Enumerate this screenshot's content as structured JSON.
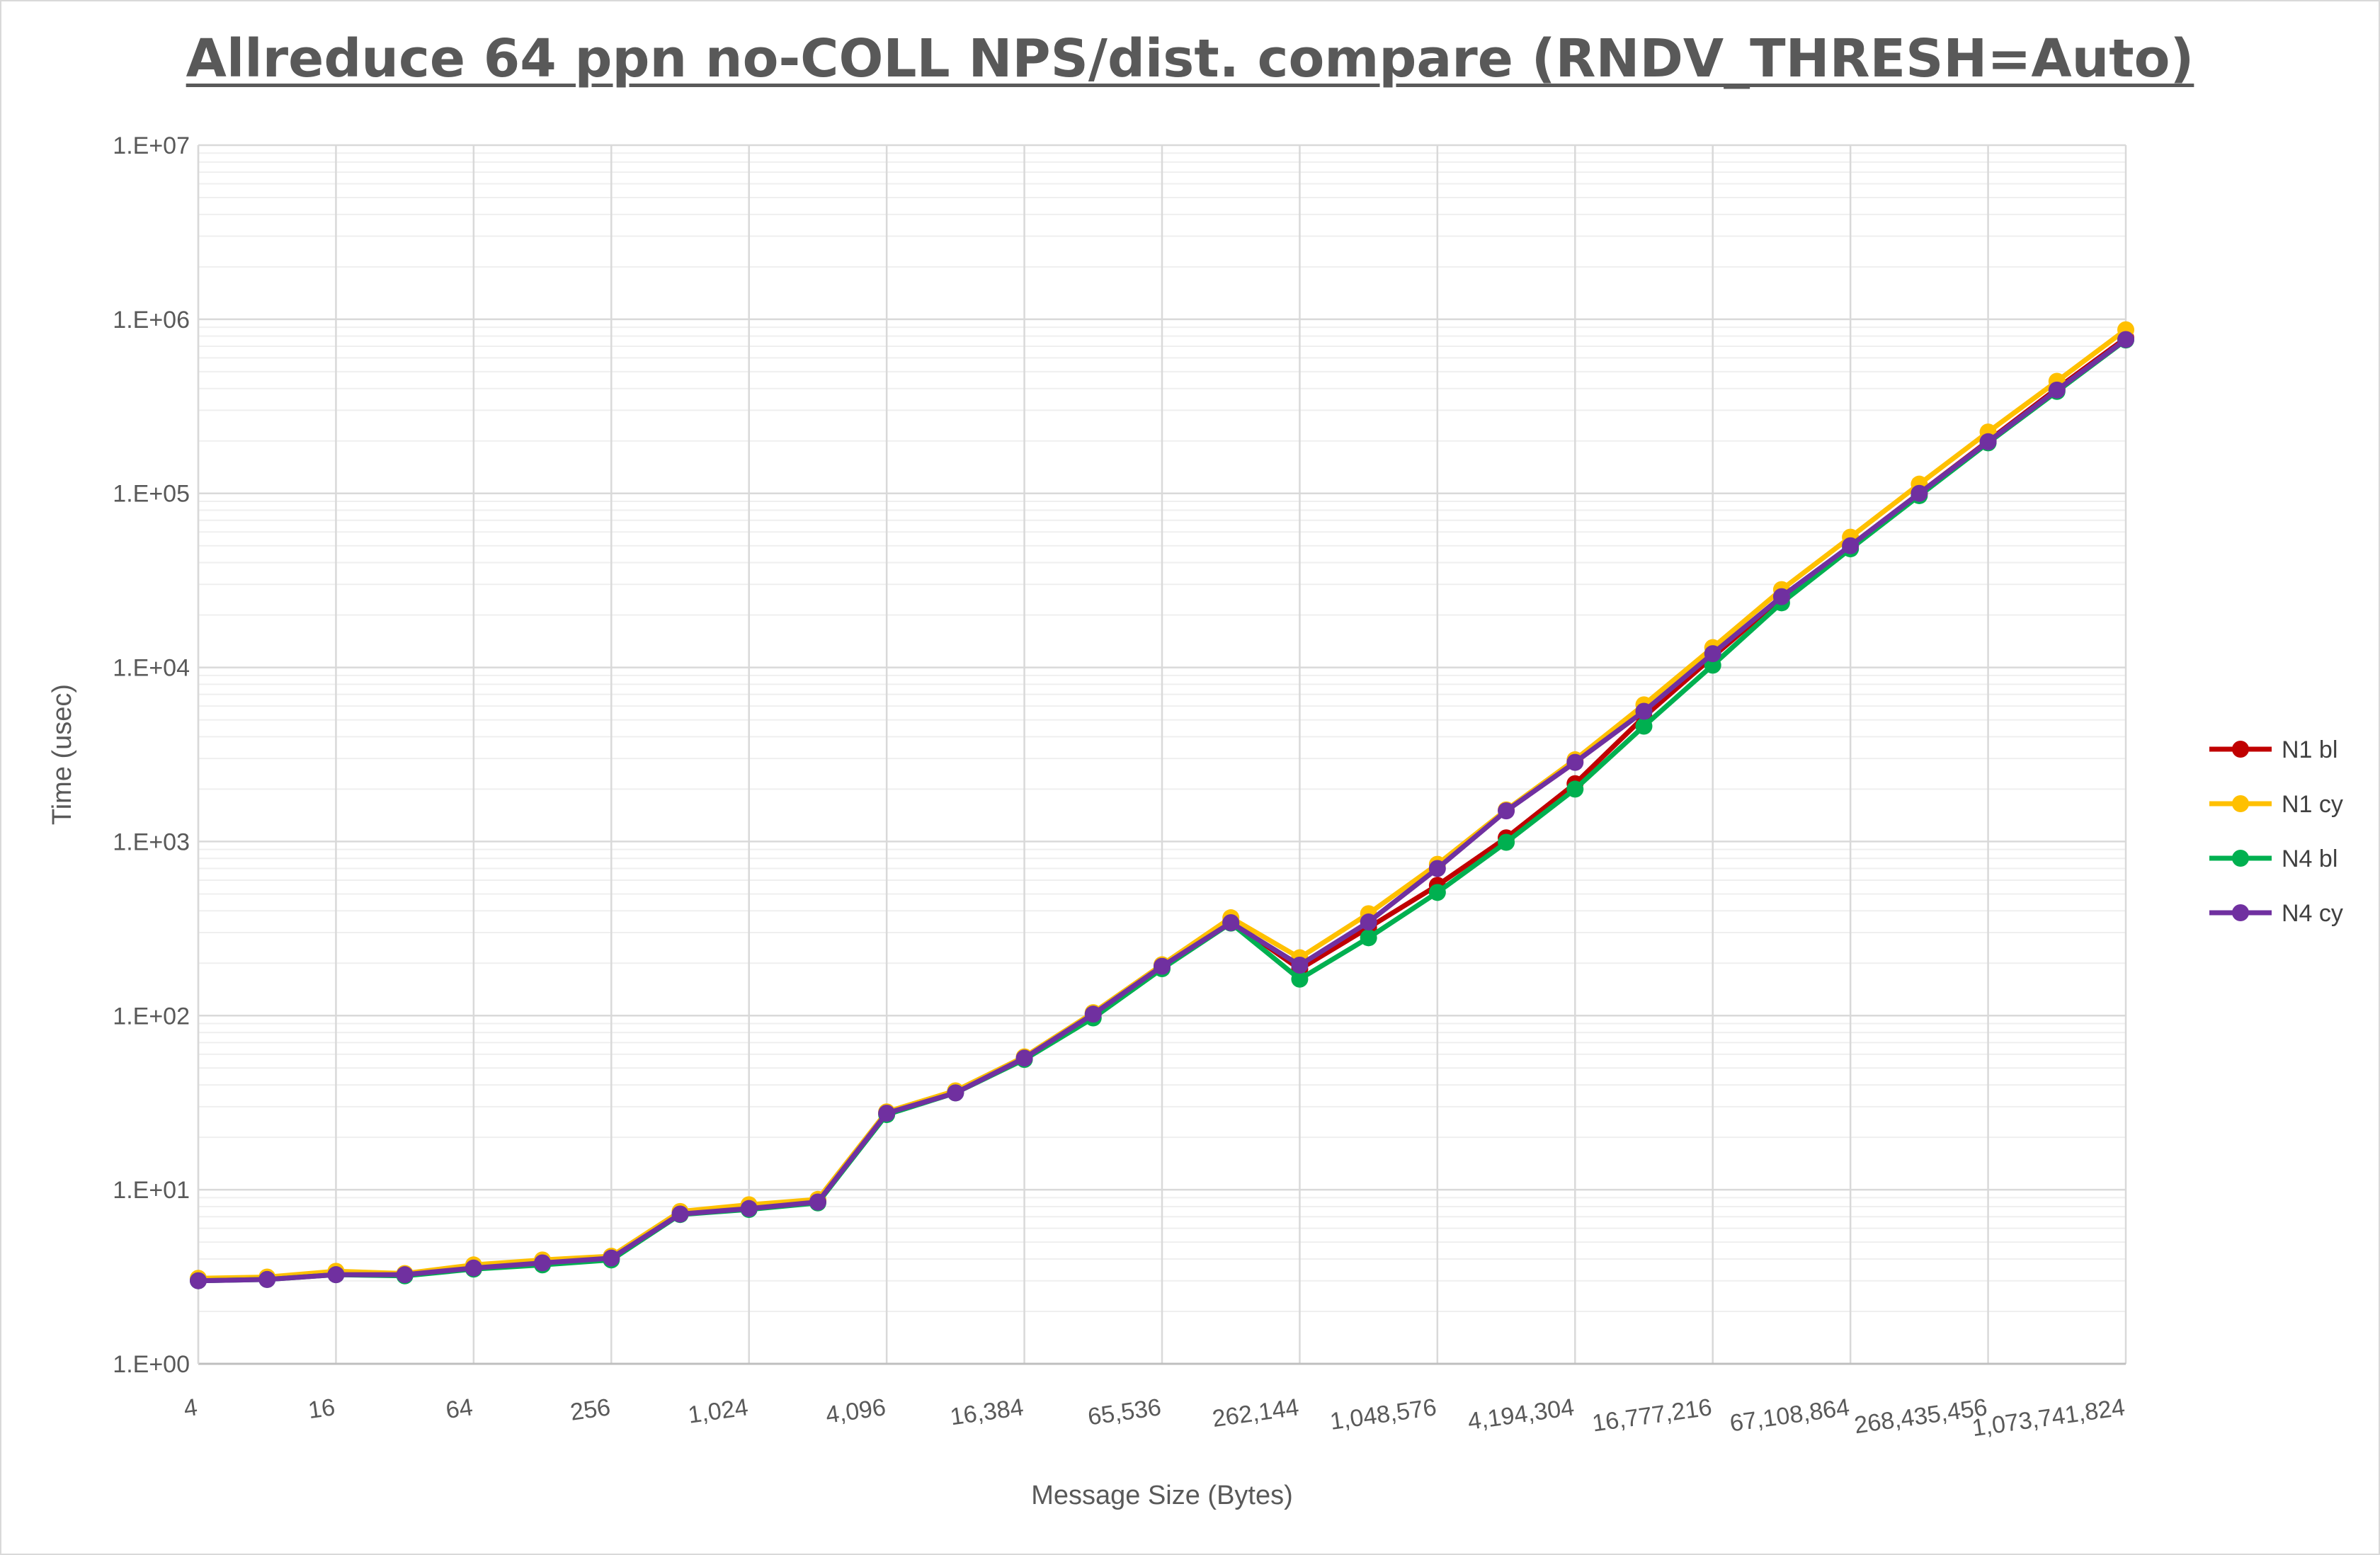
{
  "chart_data": {
    "type": "line",
    "title": "Allreduce 64 ppn no-COLL NPS/dist. compare (RNDV_THRESH=Auto)",
    "xlabel": "Message Size (Bytes)",
    "ylabel": "Time (usec)",
    "yscale": "log",
    "ylim": [
      1,
      10000000
    ],
    "y_ticks": [
      1,
      10,
      100,
      1000,
      10000,
      100000,
      1000000,
      10000000
    ],
    "y_tick_labels": [
      "1.E+00",
      "1.E+01",
      "1.E+02",
      "1.E+03",
      "1.E+04",
      "1.E+05",
      "1.E+06",
      "1.E+07"
    ],
    "x": [
      4,
      8,
      16,
      32,
      64,
      128,
      256,
      512,
      1024,
      2048,
      4096,
      8192,
      16384,
      32768,
      65536,
      131072,
      262144,
      524288,
      1048576,
      2097152,
      4194304,
      8388608,
      16777216,
      33554432,
      67108864,
      134217728,
      268435456,
      536870912,
      1073741824
    ],
    "x_tick_labels": [
      "4",
      "16",
      "64",
      "256",
      "1,024",
      "4,096",
      "16,384",
      "65,536",
      "262,144",
      "1,048,576",
      "4,194,304",
      "16,777,216",
      "67,108,864",
      "268,435,456",
      "1,073,741,824"
    ],
    "legend_position": "right",
    "grid": true,
    "series": [
      {
        "name": "N1 bl",
        "color": "#c00000",
        "values": [
          3.05,
          3.1,
          3.3,
          3.25,
          3.6,
          3.85,
          4.1,
          7.4,
          8.0,
          8.6,
          27.5,
          36.5,
          57,
          102,
          192,
          350,
          185,
          320,
          560,
          1050,
          2150,
          5200,
          11500,
          25000,
          50000,
          100000,
          200000,
          400000,
          780000
        ]
      },
      {
        "name": "N1 cy",
        "color": "#ffc000",
        "values": [
          3.1,
          3.15,
          3.4,
          3.3,
          3.7,
          3.95,
          4.15,
          7.5,
          8.2,
          8.8,
          28,
          37,
          58,
          104,
          196,
          365,
          215,
          385,
          740,
          1520,
          2950,
          6100,
          13000,
          28000,
          56000,
          113000,
          225000,
          440000,
          870000
        ]
      },
      {
        "name": "N4 bl",
        "color": "#00b050",
        "values": [
          3.0,
          3.05,
          3.25,
          3.2,
          3.5,
          3.7,
          3.95,
          7.2,
          7.7,
          8.4,
          27,
          36,
          56,
          97,
          186,
          340,
          162,
          280,
          510,
          990,
          2000,
          4600,
          10300,
          23500,
          48000,
          97000,
          195000,
          385000,
          760000
        ]
      },
      {
        "name": "N4 cy",
        "color": "#7030a0",
        "values": [
          3.0,
          3.05,
          3.25,
          3.25,
          3.55,
          3.8,
          4.05,
          7.25,
          7.8,
          8.5,
          27.5,
          36,
          57,
          102,
          192,
          342,
          195,
          345,
          700,
          1500,
          2850,
          5600,
          12000,
          25500,
          50000,
          100000,
          198000,
          392000,
          765000
        ]
      }
    ]
  }
}
